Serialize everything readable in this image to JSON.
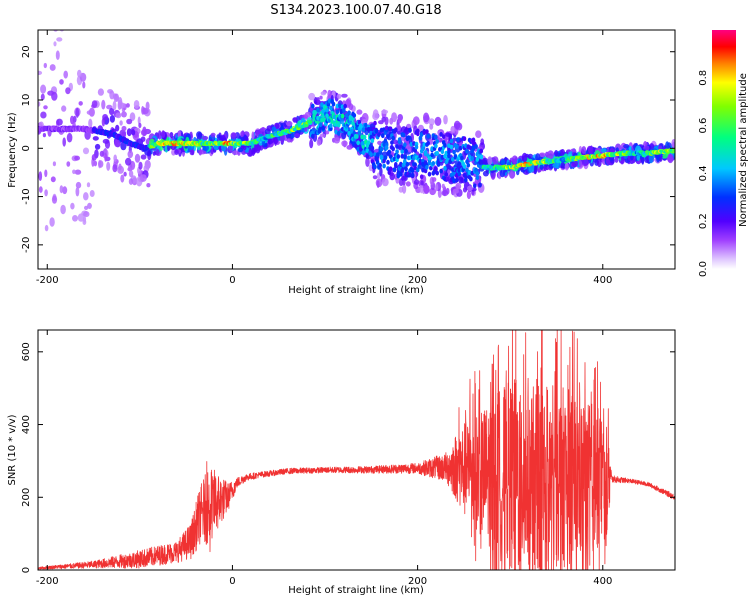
{
  "title": "S134.2023.100.07.40.G18",
  "chart_data": [
    {
      "type": "heatmap",
      "xlabel": "Height of straight line (km)",
      "ylabel": "Frequency (Hz)",
      "xlim": [
        -210,
        478
      ],
      "ylim": [
        -25,
        24.5
      ],
      "xticks": [
        -200,
        0,
        200,
        400
      ],
      "yticks": [
        -20,
        -10,
        0,
        10,
        20
      ],
      "grid": false,
      "colorbar": {
        "label": "Normalized spectral amplitude",
        "range": [
          0,
          1
        ],
        "ticks": [
          "0.0",
          "0.2",
          "0.4",
          "0.6",
          "0.8"
        ],
        "colormap": "rainbow (white → purple → blue → cyan → green → yellow → orange → red → magenta)"
      },
      "ridge": {
        "x": [
          -160,
          -130,
          -110,
          -95,
          -80,
          -60,
          -40,
          -20,
          0,
          20,
          40,
          60,
          80,
          100,
          120,
          140,
          160,
          180,
          200,
          220,
          240,
          260,
          275,
          300,
          325,
          350,
          375,
          400,
          425,
          450,
          478
        ],
        "freq": [
          4,
          3,
          1,
          0,
          1,
          1,
          1,
          1,
          1,
          1,
          2.5,
          3.5,
          5,
          7,
          6,
          2,
          0,
          -1,
          -1,
          -1.5,
          -2,
          -3,
          -4,
          -4,
          -3,
          -2.5,
          -2,
          -1.5,
          -1,
          -1,
          -0.5
        ]
      }
    },
    {
      "type": "line",
      "xlabel": "Height of straight line (km)",
      "ylabel": "SNR (10 * v/v)",
      "xlim": [
        -210,
        478
      ],
      "ylim": [
        0,
        660
      ],
      "xticks": [
        -200,
        0,
        200,
        400
      ],
      "yticks": [
        0,
        200,
        400,
        600
      ],
      "grid": false,
      "color": "#f03232",
      "envelope": {
        "x": [
          -210,
          -150,
          -100,
          -60,
          -45,
          -35,
          -25,
          -15,
          -5,
          5,
          15,
          30,
          60,
          100,
          150,
          200,
          230,
          245,
          255,
          270,
          290,
          310,
          340,
          370,
          390,
          400,
          405,
          410,
          430,
          450,
          478
        ],
        "mean": [
          5,
          15,
          30,
          50,
          80,
          150,
          180,
          190,
          200,
          240,
          255,
          262,
          272,
          275,
          276,
          280,
          282,
          285,
          270,
          265,
          262,
          260,
          258,
          255,
          252,
          250,
          245,
          250,
          245,
          235,
          200
        ],
        "amplitude": [
          3,
          10,
          25,
          30,
          50,
          80,
          110,
          80,
          40,
          15,
          10,
          8,
          8,
          8,
          10,
          15,
          40,
          110,
          150,
          180,
          240,
          280,
          260,
          240,
          210,
          180,
          150,
          10,
          6,
          6,
          8
        ]
      }
    }
  ]
}
